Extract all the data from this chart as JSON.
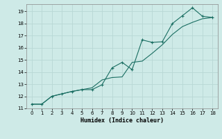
{
  "xlabel": "Humidex (Indice chaleur)",
  "bg_color": "#ceeae7",
  "grid_color": "#b8d8d5",
  "line_color": "#1a6e62",
  "xlim": [
    -0.5,
    18.5
  ],
  "ylim": [
    11,
    19.6
  ],
  "xticks": [
    0,
    1,
    2,
    3,
    4,
    5,
    6,
    7,
    8,
    9,
    10,
    11,
    12,
    13,
    14,
    15,
    16,
    17,
    18
  ],
  "yticks": [
    11,
    12,
    13,
    14,
    15,
    16,
    17,
    18,
    19
  ],
  "line1_x": [
    0,
    1,
    2,
    3,
    4,
    5,
    6,
    7,
    8,
    9,
    10,
    11,
    12,
    13,
    14,
    15,
    16,
    17,
    18
  ],
  "line1_y": [
    11.35,
    11.35,
    12.0,
    12.2,
    12.4,
    12.55,
    12.55,
    12.95,
    14.35,
    14.8,
    14.2,
    16.65,
    16.45,
    16.5,
    18.0,
    18.65,
    19.3,
    18.6,
    18.5
  ],
  "line2_x": [
    0,
    1,
    2,
    3,
    4,
    5,
    6,
    7,
    8,
    9,
    10,
    11,
    12,
    13,
    14,
    15,
    16,
    17,
    18
  ],
  "line2_y": [
    11.35,
    11.35,
    12.0,
    12.2,
    12.4,
    12.55,
    12.7,
    13.35,
    13.55,
    13.6,
    14.8,
    14.9,
    15.55,
    16.25,
    17.1,
    17.75,
    18.1,
    18.4,
    18.5
  ]
}
